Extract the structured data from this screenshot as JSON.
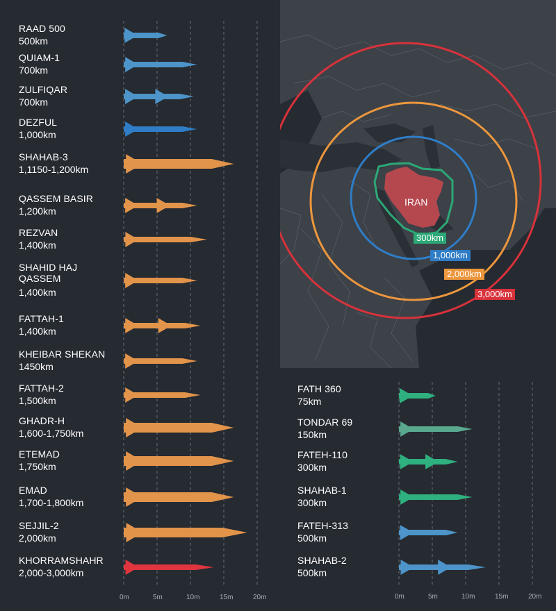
{
  "colors": {
    "background": "#262a31",
    "map_land": "#3d4148",
    "map_water": "#262a31",
    "iran_fill": "#b5484f",
    "ring_300": "#2ca876",
    "ring_1000": "#2f7dc6",
    "ring_2000": "#ec973d",
    "ring_3000": "#d8323b",
    "missile_blue": "#4c94c9",
    "missile_orange": "#e2944a",
    "missile_red": "#e0353e",
    "missile_green": "#2fb07f"
  },
  "map": {
    "country_label": "IRAN",
    "rings": [
      {
        "label": "300km",
        "color": "#2ca876"
      },
      {
        "label": "1,000km",
        "color": "#2f7dc6"
      },
      {
        "label": "2,000km",
        "color": "#ec973d"
      },
      {
        "label": "3,000km",
        "color": "#d8323b"
      }
    ]
  },
  "left_missiles": [
    {
      "name": "RAAD 500",
      "range": "500km",
      "color": "#4c94c9",
      "length_m": 6.5
    },
    {
      "name": "QUIAM-1",
      "range": "700km",
      "color": "#4c94c9",
      "length_m": 11
    },
    {
      "name": "ZULFIQAR",
      "range": "700km",
      "color": "#4c94c9",
      "length_m": 10.5
    },
    {
      "name": "DEZFUL",
      "range": "1,000km",
      "color": "#2f7dc6",
      "length_m": 11
    },
    {
      "name": "SHAHAB-3",
      "range": "1,1150-1,200km",
      "color": "#e2944a",
      "length_m": 16.5
    },
    {
      "name": "QASSEM BASIR",
      "range": "1,200km",
      "color": "#e2944a",
      "length_m": 11
    },
    {
      "name": "REZVAN",
      "range": "1,400km",
      "color": "#e2944a",
      "length_m": 12.5
    },
    {
      "name": "SHAHID HAJ\nQASSEM",
      "range": "1,400km",
      "color": "#e2944a",
      "length_m": 11
    },
    {
      "name": "FATTAH-1",
      "range": "1,400km",
      "color": "#e2944a",
      "length_m": 11.5
    },
    {
      "name": "KHEIBAR SHEKAN",
      "range": "1450km",
      "color": "#e2944a",
      "length_m": 11
    },
    {
      "name": "FATTAH-2",
      "range": "1,500km",
      "color": "#e2944a",
      "length_m": 11.5
    },
    {
      "name": "GHADR-H",
      "range": "1,600-1,750km",
      "color": "#e2944a",
      "length_m": 16.5
    },
    {
      "name": "ETEMAD",
      "range": "1,750km",
      "color": "#e2944a",
      "length_m": 16.5
    },
    {
      "name": "EMAD",
      "range": "1,700-1,800km",
      "color": "#e2944a",
      "length_m": 16.5
    },
    {
      "name": "SEJJIL-2",
      "range": "2,000km",
      "color": "#e2944a",
      "length_m": 18.5
    },
    {
      "name": "KHORRAMSHAHR",
      "range": "2,000-3,000km",
      "color": "#e0353e",
      "length_m": 13.5
    }
  ],
  "right_missiles": [
    {
      "name": "FATH 360",
      "range": "75km",
      "color": "#2fb07f",
      "length_m": 5.5
    },
    {
      "name": "TONDAR 69",
      "range": "150km",
      "color": "#5aa98f",
      "length_m": 11
    },
    {
      "name": "FATEH-110",
      "range": "300km",
      "color": "#2fb07f",
      "length_m": 8.8
    },
    {
      "name": "SHAHAB-1",
      "range": "300km",
      "color": "#2fb07f",
      "length_m": 11
    },
    {
      "name": "FATEH-313",
      "range": "500km",
      "color": "#4c94c9",
      "length_m": 8.8
    },
    {
      "name": "SHAHAB-2",
      "range": "500km",
      "color": "#4c94c9",
      "length_m": 13
    }
  ],
  "scale_ticks": [
    "0m",
    "5m",
    "10m",
    "15m",
    "20m"
  ]
}
